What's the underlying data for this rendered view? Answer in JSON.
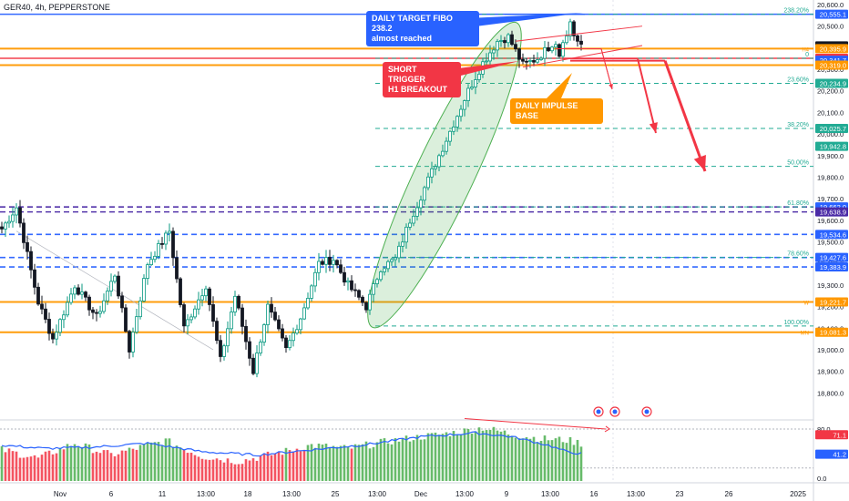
{
  "header": {
    "title": "GER40, 4h, PEPPERSTONE"
  },
  "colors": {
    "up": "#089981",
    "down": "#131722",
    "blue": "#2962ff",
    "purple": "#4a2aa6",
    "orange": "#ff9800",
    "red": "#f23645",
    "green": "#4caf50",
    "teal": "#22ab94"
  },
  "annotations": {
    "daily_target": "DAILY TARGET FIBO 238.2\nalmost reached",
    "short_trigger": "SHORT TRIGGER\nH1 BREAKOUT",
    "impulse_base": "DAILY IMPULSE BASE"
  },
  "chart_data": {
    "type": "candlestick",
    "title": "GER40, 4h, PEPPERSTONE",
    "ylim": [
      18700,
      20600
    ],
    "y_ticks": [
      "20,600.0",
      "20,500.0",
      "20,400.0",
      "20,300.0",
      "20,200.0",
      "20,100.0",
      "20,000.0",
      "19,900.0",
      "19,800.0",
      "19,700.0",
      "19,600.0",
      "19,500.0",
      "19,400.0",
      "19,300.0",
      "19,200.0",
      "19,100.0",
      "19,000.0",
      "18,900.0",
      "18,800.0"
    ],
    "x_ticks": [
      "Nov",
      "6",
      "11",
      "13:00",
      "18",
      "13:00",
      "25",
      "13:00",
      "Dec",
      "13:00",
      "9",
      "13:00",
      "16",
      "13:00",
      "23",
      "26",
      "2025"
    ],
    "price_labels": [
      {
        "value": "20,555.1",
        "color": "#2962ff"
      },
      {
        "value": "20,408.6",
        "color": "#131722"
      },
      {
        "value": "20,395.9",
        "color": "#ff9800"
      },
      {
        "value": "20,350.7",
        "color": "#f23645"
      },
      {
        "value": "20,341.7",
        "color": "#2962ff"
      },
      {
        "value": "20,319.0",
        "color": "#ff9800"
      },
      {
        "value": "20,234.9",
        "color": "#22ab94"
      },
      {
        "value": "20,025.7",
        "color": "#22ab94"
      },
      {
        "value": "19,942.8",
        "color": "#22ab94"
      },
      {
        "value": "19,662.0",
        "color": "#2962ff"
      },
      {
        "value": "19,638.9",
        "color": "#4a2aa6"
      },
      {
        "value": "19,534.6",
        "color": "#2962ff"
      },
      {
        "value": "19,427.6",
        "color": "#2962ff"
      },
      {
        "value": "19,383.9",
        "color": "#2962ff"
      },
      {
        "value": "19,221.7",
        "color": "#ff9800"
      },
      {
        "value": "19,081.3",
        "color": "#ff9800"
      }
    ],
    "fib_levels": [
      {
        "label": "238.20%",
        "price": 20555.1
      },
      {
        "label": "0",
        "price": 20350.7
      },
      {
        "label": "23.60%",
        "price": 20234.9
      },
      {
        "label": "38.20%",
        "price": 20025.7
      },
      {
        "label": "50.00%",
        "price": 19850
      },
      {
        "label": "61.80%",
        "price": 19662.0
      },
      {
        "label": "78.60%",
        "price": 19427.6
      },
      {
        "label": "100.00%",
        "price": 19110
      }
    ],
    "level_tags": [
      {
        "label": "H4",
        "price": 20395.9
      },
      {
        "label": "W",
        "price": 19221.7
      },
      {
        "label": "MN",
        "price": 19081.3
      }
    ],
    "horizontal_levels": [
      {
        "price": 20555.1,
        "color": "#2962ff",
        "style": "solid"
      },
      {
        "price": 20395.9,
        "color": "#ff9800",
        "style": "solid"
      },
      {
        "price": 20350.7,
        "color": "#f23645",
        "style": "solid"
      },
      {
        "price": 20319.0,
        "color": "#ff9800",
        "style": "solid"
      },
      {
        "price": 19662.0,
        "color": "#4a2aa6",
        "style": "dashed"
      },
      {
        "price": 19638.9,
        "color": "#4a2aa6",
        "style": "dashed"
      },
      {
        "price": 19534.6,
        "color": "#2962ff",
        "style": "dashed"
      },
      {
        "price": 19427.6,
        "color": "#2962ff",
        "style": "dashed"
      },
      {
        "price": 19383.9,
        "color": "#2962ff",
        "style": "dashed"
      },
      {
        "price": 19221.7,
        "color": "#ff9800",
        "style": "solid"
      },
      {
        "price": 19081.3,
        "color": "#ff9800",
        "style": "solid"
      }
    ],
    "anchors": [
      {
        "i": 0,
        "p": 19560
      },
      {
        "i": 4,
        "p": 19660
      },
      {
        "i": 10,
        "p": 19220
      },
      {
        "i": 14,
        "p": 19050
      },
      {
        "i": 20,
        "p": 19300
      },
      {
        "i": 26,
        "p": 19150
      },
      {
        "i": 31,
        "p": 19350
      },
      {
        "i": 35,
        "p": 19000
      },
      {
        "i": 40,
        "p": 19400
      },
      {
        "i": 46,
        "p": 19550
      },
      {
        "i": 50,
        "p": 19100
      },
      {
        "i": 56,
        "p": 19300
      },
      {
        "i": 60,
        "p": 18950
      },
      {
        "i": 64,
        "p": 19250
      },
      {
        "i": 69,
        "p": 18900
      },
      {
        "i": 73,
        "p": 19200
      },
      {
        "i": 78,
        "p": 19000
      },
      {
        "i": 82,
        "p": 19150
      },
      {
        "i": 87,
        "p": 19400
      },
      {
        "i": 91,
        "p": 19420
      },
      {
        "i": 95,
        "p": 19300
      },
      {
        "i": 100,
        "p": 19200
      },
      {
        "i": 104,
        "p": 19380
      },
      {
        "i": 108,
        "p": 19420
      },
      {
        "i": 112,
        "p": 19600
      },
      {
        "i": 116,
        "p": 19750
      },
      {
        "i": 120,
        "p": 19900
      },
      {
        "i": 124,
        "p": 20050
      },
      {
        "i": 128,
        "p": 20200
      },
      {
        "i": 132,
        "p": 20330
      },
      {
        "i": 136,
        "p": 20430
      },
      {
        "i": 139,
        "p": 20450
      },
      {
        "i": 143,
        "p": 20320
      },
      {
        "i": 147,
        "p": 20350
      },
      {
        "i": 151,
        "p": 20420
      },
      {
        "i": 155,
        "p": 20450
      },
      {
        "i": 157,
        "p": 20460
      },
      {
        "i": 159,
        "p": 20400
      }
    ],
    "rsi_levels": [
      "80.0",
      "71.1",
      "41.2",
      "0.0"
    ],
    "rsi_anchors": [
      {
        "i": 0,
        "v": 48
      },
      {
        "i": 10,
        "v": 35
      },
      {
        "i": 20,
        "v": 58
      },
      {
        "i": 30,
        "v": 40
      },
      {
        "i": 45,
        "v": 62
      },
      {
        "i": 55,
        "v": 38
      },
      {
        "i": 65,
        "v": 30
      },
      {
        "i": 75,
        "v": 42
      },
      {
        "i": 85,
        "v": 55
      },
      {
        "i": 95,
        "v": 50
      },
      {
        "i": 105,
        "v": 60
      },
      {
        "i": 115,
        "v": 68
      },
      {
        "i": 125,
        "v": 75
      },
      {
        "i": 132,
        "v": 82
      },
      {
        "i": 140,
        "v": 72
      },
      {
        "i": 148,
        "v": 65
      },
      {
        "i": 155,
        "v": 63
      },
      {
        "i": 159,
        "v": 58
      }
    ],
    "rsi_line_anchors": [
      {
        "i": 0,
        "v": 55
      },
      {
        "i": 12,
        "v": 50
      },
      {
        "i": 25,
        "v": 52
      },
      {
        "i": 40,
        "v": 58
      },
      {
        "i": 55,
        "v": 45
      },
      {
        "i": 70,
        "v": 40
      },
      {
        "i": 85,
        "v": 48
      },
      {
        "i": 100,
        "v": 56
      },
      {
        "i": 115,
        "v": 68
      },
      {
        "i": 130,
        "v": 74
      },
      {
        "i": 140,
        "v": 68
      },
      {
        "i": 150,
        "v": 55
      },
      {
        "i": 155,
        "v": 45
      },
      {
        "i": 159,
        "v": 42
      }
    ]
  }
}
